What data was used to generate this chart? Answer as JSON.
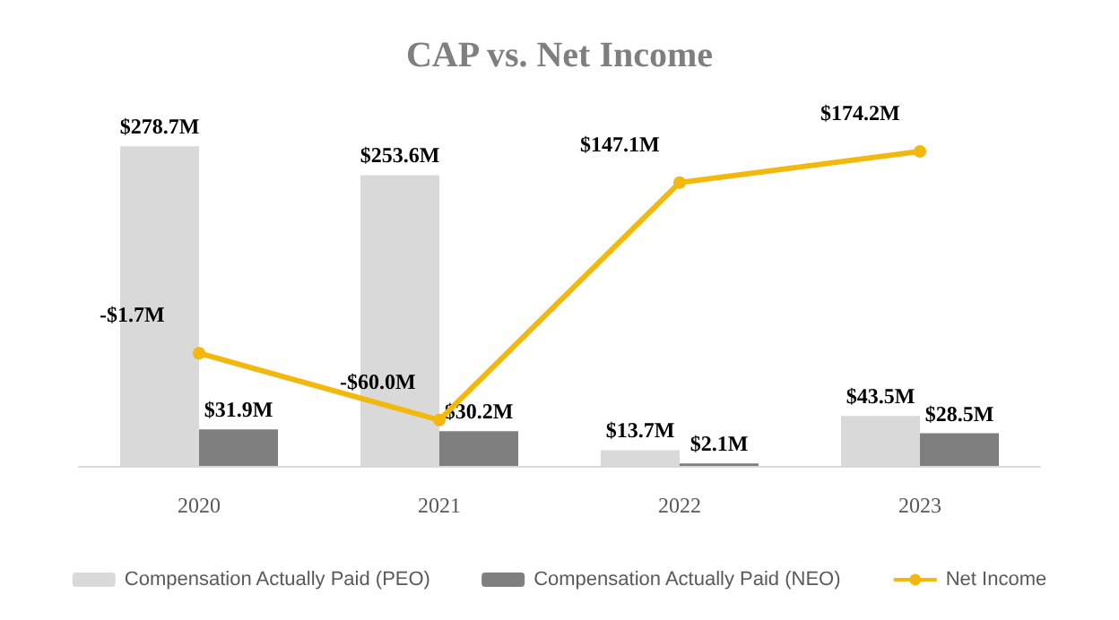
{
  "chart_data": {
    "type": "bar",
    "title": "CAP vs. Net Income",
    "categories": [
      "2020",
      "2021",
      "2022",
      "2023"
    ],
    "series": [
      {
        "name": "Compensation Actually Paid (PEO)",
        "color": "#d9d9d9",
        "values": [
          278.7,
          253.6,
          13.7,
          43.5
        ],
        "value_labels": [
          "$278.7M",
          "$253.6M",
          "$13.7M",
          "$43.5M"
        ]
      },
      {
        "name": "Compensation Actually Paid (NEO)",
        "color": "#7f7f7f",
        "values": [
          31.9,
          30.2,
          2.1,
          28.5
        ],
        "value_labels": [
          "$31.9M",
          "$30.2M",
          "$2.1M",
          "$28.5M"
        ]
      },
      {
        "name": "Net Income",
        "type": "line",
        "axis": "y2",
        "color": "#f2b80d",
        "values": [
          -1.7,
          -60.0,
          147.1,
          174.2
        ],
        "value_labels": [
          "-$1.7M",
          "-$60.0M",
          "$147.1M",
          "$174.2M"
        ],
        "marker": "circle"
      }
    ],
    "legend": "bottom"
  }
}
